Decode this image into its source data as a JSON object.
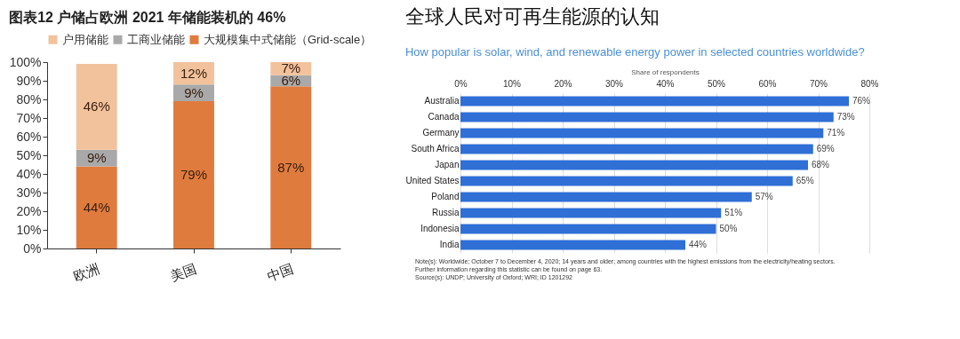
{
  "chart_data": [
    {
      "type": "bar",
      "title": "图表12   户储占欧洲 2021 年储能装机的 46%",
      "categories": [
        "欧洲",
        "美国",
        "中国"
      ],
      "stacked": true,
      "legend": "top",
      "grid": false,
      "series": [
        {
          "name": "大规模集中式储能（Grid-scale）",
          "color": "#e07b3e",
          "values": [
            44,
            79,
            87
          ],
          "value_labels": [
            "44%",
            "79%",
            "87%"
          ]
        },
        {
          "name": "工商业储能",
          "color": "#a9a9a9",
          "values": [
            9,
            9,
            6
          ],
          "value_labels": [
            "9%",
            "9%",
            "6%"
          ]
        },
        {
          "name": "户用储能",
          "color": "#f2c29c",
          "values": [
            46,
            12,
            7
          ],
          "value_labels": [
            "46%",
            "12%",
            "7%"
          ]
        }
      ],
      "ylim": [
        0,
        100
      ],
      "yticks": [
        {
          "value": 0,
          "label": "0%"
        },
        {
          "value": 10,
          "label": "10%"
        },
        {
          "value": 20,
          "label": "20%"
        },
        {
          "value": 30,
          "label": "30%"
        },
        {
          "value": 40,
          "label": "40%"
        },
        {
          "value": 50,
          "label": "50%"
        },
        {
          "value": 60,
          "label": "60%"
        },
        {
          "value": 70,
          "label": "70%"
        },
        {
          "value": 80,
          "label": "80%"
        },
        {
          "value": 90,
          "label": "90%"
        },
        {
          "value": 100,
          "label": "100%"
        }
      ]
    },
    {
      "type": "bar",
      "orientation": "horizontal",
      "title": "全球人民对可再生能源的认知",
      "subtitle": "How popular is solar, wind, and renewable energy power in selected countries worldwide?",
      "xlabel": "Share of respondents",
      "grid": "x",
      "categories": [
        "Australia",
        "Canada",
        "Germany",
        "South Africa",
        "Japan",
        "United States",
        "Poland",
        "Russia",
        "Indonesia",
        "India"
      ],
      "values": [
        76,
        73,
        71,
        69,
        68,
        65,
        57,
        51,
        50,
        44
      ],
      "color": "#2f6fd6",
      "value_labels": [
        "76%",
        "73%",
        "71%",
        "69%",
        "68%",
        "65%",
        "57%",
        "51%",
        "50%",
        "44%"
      ],
      "xlim": [
        0,
        80
      ],
      "xticks": [
        {
          "value": 0,
          "label": "0%"
        },
        {
          "value": 10,
          "label": "10%"
        },
        {
          "value": 20,
          "label": "20%"
        },
        {
          "value": 30,
          "label": "30%"
        },
        {
          "value": 40,
          "label": "40%"
        },
        {
          "value": 50,
          "label": "50%"
        },
        {
          "value": 60,
          "label": "60%"
        },
        {
          "value": 70,
          "label": "70%"
        },
        {
          "value": 80,
          "label": "80%"
        }
      ],
      "annotations": [
        "Note(s): Worldwide; October 7 to December 4, 2020; 14 years and older; among countries with the highest emissions from the electricity/heating sectors.",
        "Further information regarding this statistic can be found on page 63.",
        "Source(s): UNDP; University of Oxford; WRI; ID 1201292"
      ]
    }
  ]
}
